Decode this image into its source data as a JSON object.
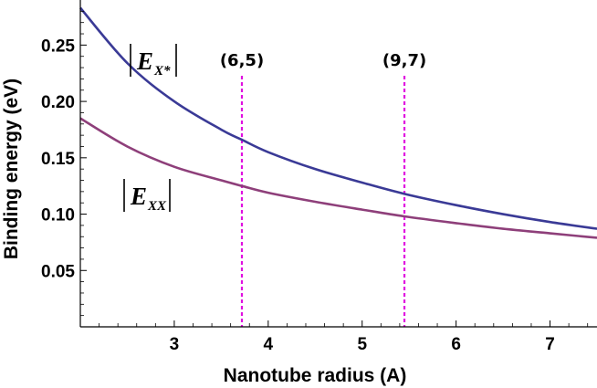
{
  "chart_data": {
    "type": "line",
    "xlabel": "Nanotube radius (A)",
    "ylabel": "Binding energy (eV)",
    "xlim": [
      2.0,
      7.5
    ],
    "ylim": [
      0.0,
      0.29
    ],
    "x_ticks": [
      3,
      4,
      5,
      6,
      7
    ],
    "x_tick_labels": [
      "3",
      "4",
      "5",
      "6",
      "7"
    ],
    "y_ticks": [
      0.05,
      0.1,
      0.15,
      0.2,
      0.25
    ],
    "y_tick_labels": [
      "0.05",
      "0.10",
      "0.15",
      "0.20",
      "0.25"
    ],
    "grid": false,
    "series": [
      {
        "name": "|E_X*|",
        "label_main": "E",
        "label_sub": "X*",
        "color": "#3a3a96",
        "x": [
          2.0,
          2.5,
          3.0,
          3.5,
          3.72,
          4.0,
          4.5,
          5.0,
          5.45,
          6.0,
          6.5,
          7.0,
          7.5
        ],
        "y": [
          0.283,
          0.234,
          0.2,
          0.175,
          0.166,
          0.155,
          0.14,
          0.128,
          0.118,
          0.108,
          0.1,
          0.093,
          0.087
        ]
      },
      {
        "name": "|E_XX|",
        "label_main": "E",
        "label_sub": "XX",
        "color": "#8e3f7a",
        "x": [
          2.0,
          2.5,
          3.0,
          3.5,
          3.72,
          4.0,
          4.5,
          5.0,
          5.45,
          6.0,
          6.5,
          7.0,
          7.5
        ],
        "y": [
          0.185,
          0.16,
          0.142,
          0.13,
          0.125,
          0.119,
          0.111,
          0.104,
          0.098,
          0.092,
          0.087,
          0.083,
          0.079
        ]
      }
    ],
    "markers": [
      {
        "label": "(6,5)",
        "x": 3.72,
        "color": "#e010e0"
      },
      {
        "label": "(9,7)",
        "x": 5.45,
        "color": "#e010e0"
      }
    ]
  }
}
